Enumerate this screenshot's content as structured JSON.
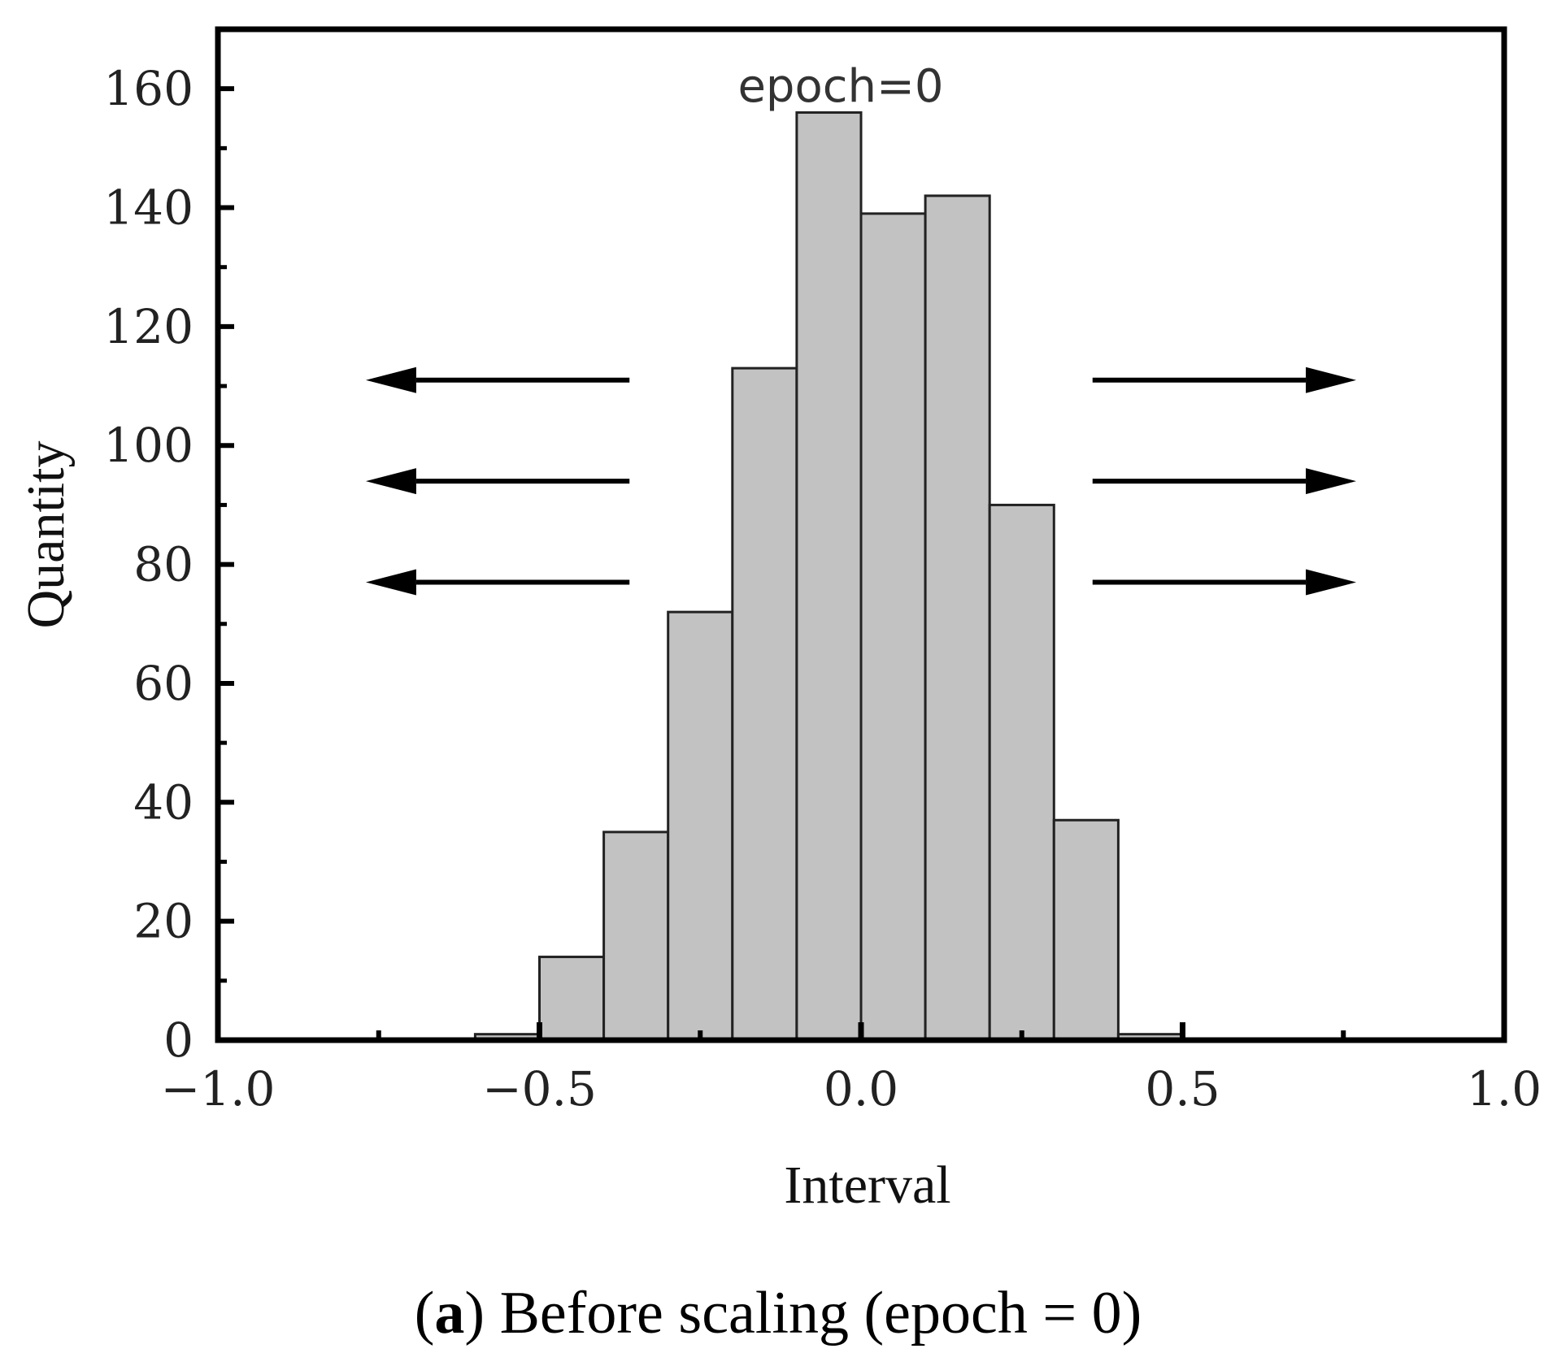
{
  "chart_data": {
    "type": "bar",
    "bins": [
      {
        "x0": -0.6,
        "x1": -0.5,
        "value": 1
      },
      {
        "x0": -0.5,
        "x1": -0.4,
        "value": 14
      },
      {
        "x0": -0.4,
        "x1": -0.3,
        "value": 35
      },
      {
        "x0": -0.3,
        "x1": -0.2,
        "value": 72
      },
      {
        "x0": -0.2,
        "x1": -0.1,
        "value": 113
      },
      {
        "x0": -0.1,
        "x1": 0.0,
        "value": 156
      },
      {
        "x0": 0.0,
        "x1": 0.1,
        "value": 139
      },
      {
        "x0": 0.1,
        "x1": 0.2,
        "value": 142
      },
      {
        "x0": 0.2,
        "x1": 0.3,
        "value": 90
      },
      {
        "x0": 0.3,
        "x1": 0.4,
        "value": 37
      },
      {
        "x0": 0.4,
        "x1": 0.5,
        "value": 1
      }
    ],
    "xlabel": "Interval",
    "ylabel": "Quantity",
    "xlim": [
      -1.0,
      1.0
    ],
    "ylim": [
      0,
      170
    ],
    "x_ticks": [
      -1.0,
      -0.5,
      0.0,
      0.5,
      1.0
    ],
    "x_tick_labels": [
      "−1.0",
      "−0.5",
      "0.0",
      "0.5",
      "1.0"
    ],
    "y_ticks": [
      0,
      20,
      40,
      60,
      80,
      100,
      120,
      140,
      160
    ],
    "y_tick_labels": [
      "0",
      "20",
      "40",
      "60",
      "80",
      "100",
      "120",
      "140",
      "160"
    ],
    "annotation": "epoch=0",
    "arrows": [
      {
        "direction": "left",
        "x_from": -0.36,
        "x_to": -0.77,
        "y": 111
      },
      {
        "direction": "left",
        "x_from": -0.36,
        "x_to": -0.77,
        "y": 94
      },
      {
        "direction": "left",
        "x_from": -0.36,
        "x_to": -0.77,
        "y": 77
      },
      {
        "direction": "right",
        "x_from": 0.36,
        "x_to": 0.77,
        "y": 111
      },
      {
        "direction": "right",
        "x_from": 0.36,
        "x_to": 0.77,
        "y": 94
      },
      {
        "direction": "right",
        "x_from": 0.36,
        "x_to": 0.77,
        "y": 77
      }
    ],
    "grid": false,
    "bar_color": "#c2c2c2",
    "bar_edge_color": "#222222"
  },
  "caption": {
    "open_paren": "(",
    "letter": "a",
    "text": ") Before scaling (epoch = 0)"
  }
}
